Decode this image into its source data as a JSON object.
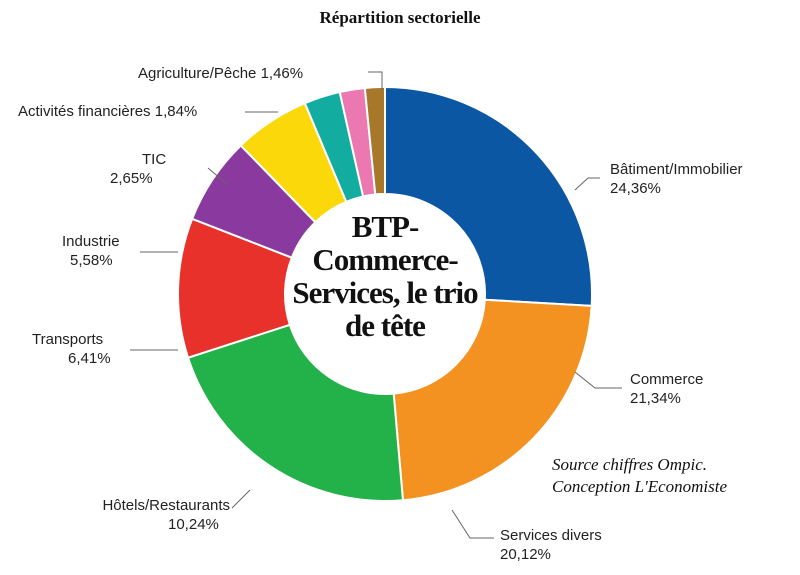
{
  "chart_data": {
    "type": "pie",
    "variant": "donut",
    "title": "Répartition sectorielle",
    "center_text": [
      "BTP-",
      "Commerce-",
      "Services, le trio",
      "de tête"
    ],
    "source": [
      "Source chiffres Ompic.",
      "Conception L'Economiste"
    ],
    "unit": "%",
    "slices": [
      {
        "name": "Bâtiment/Immobilier",
        "value": 24.36,
        "label": "24,36%",
        "color": "#0b57a4"
      },
      {
        "name": "Commerce",
        "value": 21.34,
        "label": "21,34%",
        "color": "#f39121"
      },
      {
        "name": "Services divers",
        "value": 20.12,
        "label": "20,12%",
        "color": "#23b14a"
      },
      {
        "name": "Hôtels/Restaurants",
        "value": 10.24,
        "label": "10,24%",
        "color": "#e8312a"
      },
      {
        "name": "Transports",
        "value": 6.41,
        "label": "6,41%",
        "color": "#8a3a9e"
      },
      {
        "name": "Industrie",
        "value": 5.58,
        "label": "5,58%",
        "color": "#fbd80a"
      },
      {
        "name": "TIC",
        "value": 2.65,
        "label": "2,65%",
        "color": "#12ada0"
      },
      {
        "name": "Activités financières",
        "value": 1.84,
        "label": "1,84%",
        "color": "#ec78b1"
      },
      {
        "name": "Agriculture/Pêche",
        "value": 1.46,
        "label": "1,46%",
        "color": "#a8782a"
      }
    ]
  }
}
